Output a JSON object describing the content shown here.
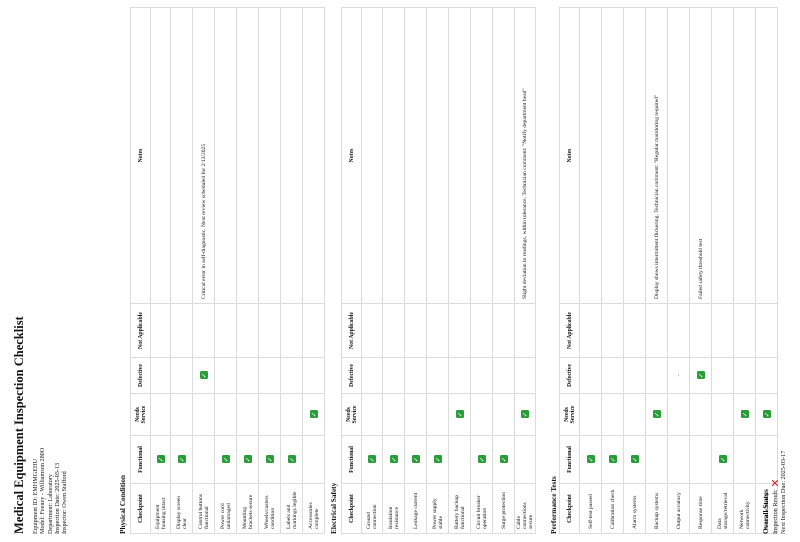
{
  "title": "Medical Equipment Inspection Checklist",
  "info": [
    "Equipment ID: EMHMGEHU",
    "Model: Feeney - Williamson 280O",
    "Department: Laboratory",
    "Inspection Date: 2025-03-13",
    "Inspector: Owen Stafford"
  ],
  "columns": [
    "Checkpoint",
    "Functional",
    "Needs Service",
    "Defective",
    "Not Applicable",
    "Notes"
  ],
  "check_symbol": "✓",
  "sections": [
    {
      "heading": "Physical Condition",
      "rows": [
        {
          "checkpoint": "Equipment housing intact",
          "status": 0,
          "note": ""
        },
        {
          "checkpoint": "Display screen clear",
          "status": 0,
          "note": ""
        },
        {
          "checkpoint": "Control buttons functional",
          "status": 2,
          "note": "Critical error in self-diagnostic. Next review scheduled for 2/13/2025"
        },
        {
          "checkpoint": "Power cord undamaged",
          "status": 0,
          "note": ""
        },
        {
          "checkpoint": "Mounting brackets secure",
          "status": 0,
          "note": ""
        },
        {
          "checkpoint": "Wheels/casters condition",
          "status": 0,
          "note": ""
        },
        {
          "checkpoint": "Labels and markings legible",
          "status": 0,
          "note": ""
        },
        {
          "checkpoint": "Accessories complete",
          "status": 1,
          "note": ""
        }
      ]
    },
    {
      "heading": "Electrical Safety",
      "rows": [
        {
          "checkpoint": "Ground connection",
          "status": 0,
          "note": ""
        },
        {
          "checkpoint": "Insulation resistance",
          "status": 0,
          "note": ""
        },
        {
          "checkpoint": "Leakage current",
          "status": 0,
          "note": ""
        },
        {
          "checkpoint": "Power supply stable",
          "status": 0,
          "note": ""
        },
        {
          "checkpoint": "Battery backup functional",
          "status": 1,
          "note": ""
        },
        {
          "checkpoint": "Circuit breaker operation",
          "status": 0,
          "note": ""
        },
        {
          "checkpoint": "Surge protection",
          "status": 0,
          "note": ""
        },
        {
          "checkpoint": "Cable connections secure",
          "status": 1,
          "note": "Slight deviation in readings, within tolerance. Technician comment: \"Notify department head\""
        }
      ]
    },
    {
      "heading": "Performance Tests",
      "rows": [
        {
          "checkpoint": "Self-test passed",
          "status": 0,
          "note": ""
        },
        {
          "checkpoint": "Calibration check",
          "status": 0,
          "note": ""
        },
        {
          "checkpoint": "Alarm systems",
          "status": 0,
          "note": ""
        },
        {
          "checkpoint": "Backup systems",
          "status": 1,
          "note": "Display shows intermittent flickering. Technician comment: \"Regular monitoring required\""
        },
        {
          "checkpoint": "Output accuracy",
          "status": 2,
          "note": "",
          "marker": "-"
        },
        {
          "checkpoint": "Response time",
          "status": 2,
          "note": "Failed safety threshold test"
        },
        {
          "checkpoint": "Data storage/retrieval",
          "status": 0,
          "note": ""
        },
        {
          "checkpoint": "Network connectivity",
          "status": 1,
          "note": ""
        },
        {
          "checkpoint": "Sensor accuracy",
          "status": 1,
          "note": ""
        }
      ]
    }
  ],
  "overall": {
    "heading": "Overall Status",
    "result_label": "Inspection Result:",
    "result_icon": "✕",
    "next_due": "Next Inspection Due: 2025-03-17"
  },
  "colors": {
    "check": "#2a9d3a",
    "fail": "#dd2222",
    "border": "#dcdcdc"
  }
}
